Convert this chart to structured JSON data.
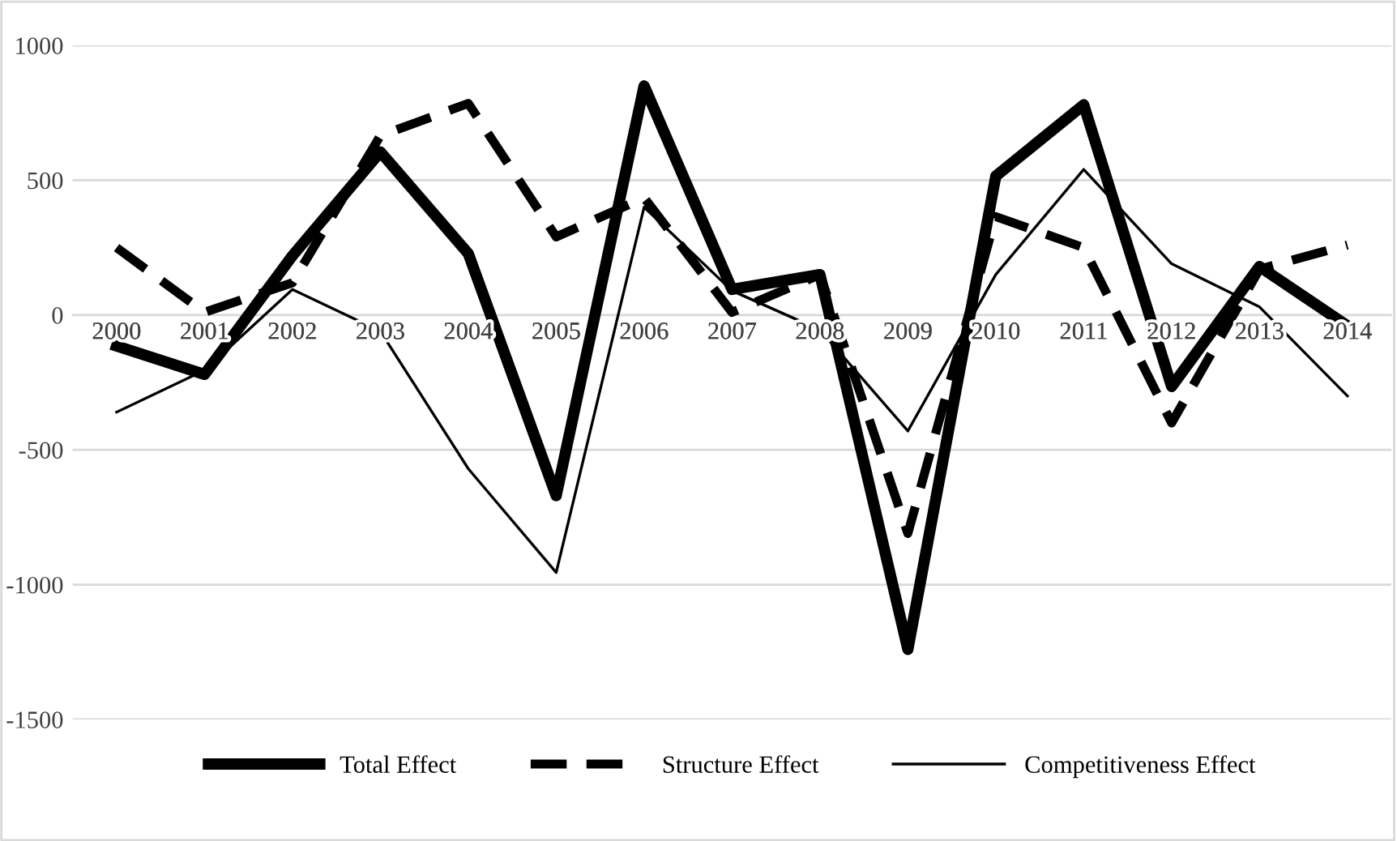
{
  "chart_data": {
    "type": "line",
    "categories": [
      "2000",
      "2001",
      "2002",
      "2003",
      "2004",
      "2005",
      "2006",
      "2007",
      "2008",
      "2009",
      "2010",
      "2011",
      "2012",
      "2013",
      "2014"
    ],
    "ylim": [
      -1500,
      1000
    ],
    "yticks": [
      -1500,
      -1000,
      -500,
      0,
      500,
      1000
    ],
    "grid": "y",
    "legend": "bottom",
    "series": [
      {
        "name": "Total Effect",
        "color": "#000000",
        "line_style": "solid",
        "values": [
          -115,
          -220,
          220,
          605,
          228,
          -670,
          850,
          95,
          150,
          -1240,
          515,
          780,
          -265,
          180,
          -40
        ]
      },
      {
        "name": "Structure Effect",
        "color": "#000000",
        "line_style": "dashed",
        "values": [
          250,
          10,
          120,
          665,
          785,
          290,
          435,
          10,
          150,
          -810,
          365,
          250,
          -400,
          170,
          260
        ]
      },
      {
        "name": "Competitiveness Effect",
        "color": "#000000",
        "line_style": "solid",
        "values": [
          -360,
          -205,
          95,
          -60,
          -570,
          -955,
          400,
          90,
          -55,
          -430,
          150,
          540,
          190,
          30,
          -300
        ]
      }
    ]
  }
}
